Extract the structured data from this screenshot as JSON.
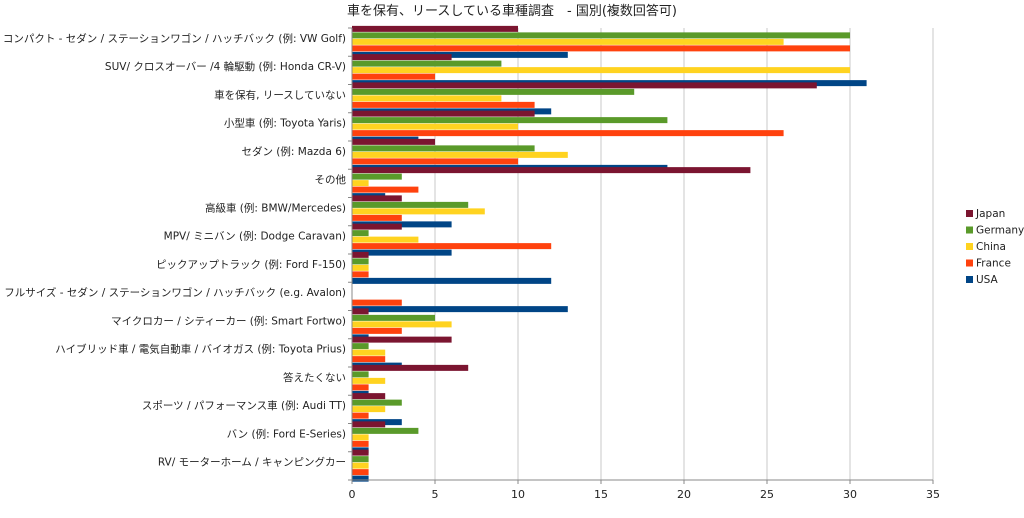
{
  "chart_data": {
    "type": "bar",
    "orientation": "horizontal",
    "title": "車を保有、リースしている車種調査　- 国別(複数回答可)",
    "xlabel": "",
    "ylabel": "",
    "xlim": [
      0,
      35
    ],
    "xticks": [
      "0",
      "5",
      "10",
      "15",
      "20",
      "25",
      "30",
      "35"
    ],
    "grid": "vertical",
    "legend_position": "right",
    "categories": [
      "コンパクト - セダン / ステーションワゴン / ハッチバック (例: VW Golf)",
      "SUV/ クロスオーバー /4 輪駆動 (例: Honda CR-V)",
      "車を保有, リースしていない",
      "小型車 (例: Toyota Yaris)",
      "セダン (例:  Mazda 6)",
      "その他",
      "高級車 (例: BMW/Mercedes)",
      "MPV/ ミニバン (例: Dodge Caravan)",
      "ピックアップトラック (例: Ford F-150)",
      "フルサイズ - セダン / ステーションワゴン / ハッチバック (e.g. Avalon)",
      "マイクロカー / シティーカー (例:  Smart Fortwo)",
      "ハイブリッド車 / 電気自動車 / バイオガス (例: Toyota Prius)",
      "答えたくない",
      "スポーツ / パフォーマンス車 (例: Audi TT)",
      "バン (例: Ford E-Series)",
      "RV/ モーターホーム / キャンピングカー"
    ],
    "series": [
      {
        "name": "Japan",
        "color": "#7b1530",
        "values": [
          10,
          6,
          28,
          11,
          5,
          24,
          3,
          3,
          1,
          0,
          1,
          6,
          7,
          2,
          2,
          1
        ]
      },
      {
        "name": "Germany",
        "color": "#5a9a2a",
        "values": [
          30,
          9,
          17,
          19,
          11,
          3,
          7,
          1,
          1,
          0,
          5,
          1,
          1,
          3,
          4,
          1
        ]
      },
      {
        "name": "China",
        "color": "#ffd320",
        "values": [
          26,
          30,
          9,
          10,
          13,
          1,
          8,
          4,
          1,
          0,
          6,
          2,
          2,
          2,
          1,
          1
        ]
      },
      {
        "name": "France",
        "color": "#ff420e",
        "values": [
          30,
          5,
          11,
          26,
          10,
          4,
          3,
          12,
          1,
          3,
          3,
          2,
          1,
          1,
          1,
          1
        ]
      },
      {
        "name": "USA",
        "color": "#004586",
        "values": [
          13,
          31,
          12,
          4,
          19,
          2,
          6,
          6,
          12,
          13,
          1,
          3,
          1,
          3,
          1,
          1
        ]
      }
    ]
  }
}
